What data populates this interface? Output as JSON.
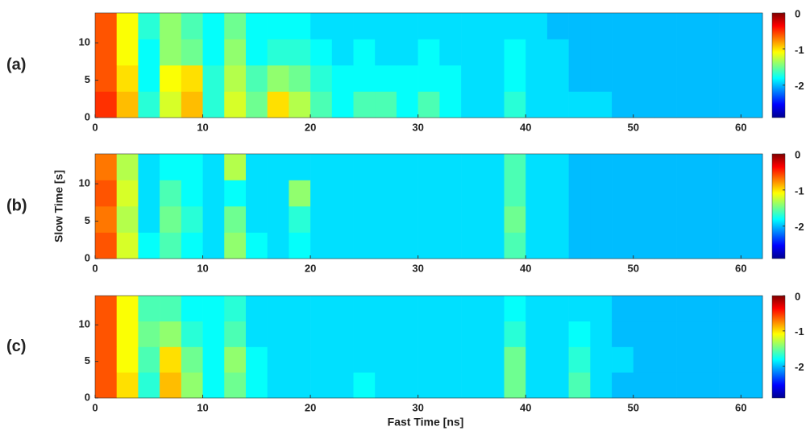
{
  "chart_data": [
    {
      "type": "heatmap",
      "label": "(a)",
      "colormap": "jet",
      "x": [
        1,
        3,
        5,
        7,
        9,
        11,
        13,
        15,
        17,
        19,
        21,
        23,
        25,
        27,
        29,
        31,
        33,
        35,
        37,
        39,
        41,
        43,
        45,
        47,
        49,
        51,
        53,
        55,
        57,
        59,
        61
      ],
      "y": [
        1.75,
        5.25,
        8.75,
        12.25
      ],
      "values": [
        [
          -0.5,
          -0.9,
          -1.7,
          -1.2,
          -0.9,
          -1.7,
          -1.2,
          -1.5,
          -1.0,
          -1.3,
          -1.6,
          -1.8,
          -1.6,
          -1.6,
          -1.8,
          -1.6,
          -1.8,
          -1.9,
          -1.9,
          -1.7,
          -1.9,
          -1.9,
          -1.9,
          -1.9,
          -2.0,
          -2.0,
          -2.0,
          -2.0,
          -2.0,
          -2.0,
          -2.0
        ],
        [
          -0.6,
          -1.0,
          -1.8,
          -1.1,
          -1.0,
          -1.7,
          -1.3,
          -1.6,
          -1.4,
          -1.5,
          -1.7,
          -1.8,
          -1.8,
          -1.8,
          -1.8,
          -1.8,
          -1.8,
          -1.9,
          -1.9,
          -1.8,
          -1.9,
          -1.9,
          -2.0,
          -2.0,
          -2.0,
          -2.0,
          -2.0,
          -2.0,
          -2.0,
          -2.0,
          -2.0
        ],
        [
          -0.6,
          -1.1,
          -1.8,
          -1.4,
          -1.5,
          -1.8,
          -1.4,
          -1.8,
          -1.7,
          -1.7,
          -1.8,
          -1.9,
          -1.8,
          -1.9,
          -1.9,
          -1.8,
          -1.9,
          -1.9,
          -1.9,
          -1.8,
          -1.9,
          -1.9,
          -2.0,
          -2.0,
          -2.0,
          -2.0,
          -2.0,
          -2.0,
          -2.0,
          -2.0,
          -2.0
        ],
        [
          -0.6,
          -1.1,
          -1.7,
          -1.4,
          -1.6,
          -1.8,
          -1.5,
          -1.8,
          -1.8,
          -1.8,
          -1.9,
          -1.9,
          -1.9,
          -1.9,
          -1.9,
          -1.9,
          -1.9,
          -1.9,
          -1.9,
          -1.9,
          -1.9,
          -2.0,
          -2.0,
          -2.0,
          -2.0,
          -2.0,
          -2.0,
          -2.0,
          -2.0,
          -2.0,
          -2.0
        ]
      ],
      "xlim": [
        0,
        62
      ],
      "xticks": [
        0,
        10,
        20,
        30,
        40,
        50,
        60
      ],
      "ylim": [
        0,
        14
      ],
      "yticks": [
        0,
        5,
        10
      ],
      "clim": [
        -2.9,
        0
      ],
      "cticks": [
        0,
        -1,
        -2
      ]
    },
    {
      "type": "heatmap",
      "label": "(b)",
      "colormap": "jet",
      "y_label": "Slow Time [s]",
      "x": [
        1,
        3,
        5,
        7,
        9,
        11,
        13,
        15,
        17,
        19,
        21,
        23,
        25,
        27,
        29,
        31,
        33,
        35,
        37,
        39,
        41,
        43,
        45,
        47,
        49,
        51,
        53,
        55,
        57,
        59,
        61
      ],
      "y": [
        1.75,
        5.25,
        8.75,
        12.25
      ],
      "values": [
        [
          -0.6,
          -1.2,
          -1.8,
          -1.6,
          -1.8,
          -1.9,
          -1.4,
          -1.8,
          -1.9,
          -1.8,
          -1.9,
          -1.9,
          -1.9,
          -1.9,
          -1.9,
          -1.9,
          -1.9,
          -1.9,
          -1.9,
          -1.6,
          -1.9,
          -1.9,
          -2.0,
          -2.0,
          -2.0,
          -2.0,
          -2.0,
          -2.0,
          -2.0,
          -2.0,
          -2.0
        ],
        [
          -0.7,
          -1.3,
          -1.9,
          -1.5,
          -1.7,
          -1.9,
          -1.5,
          -1.9,
          -1.9,
          -1.7,
          -1.9,
          -1.9,
          -1.9,
          -1.9,
          -1.9,
          -1.9,
          -1.9,
          -1.9,
          -1.9,
          -1.5,
          -1.9,
          -1.9,
          -2.0,
          -2.0,
          -2.0,
          -2.0,
          -2.0,
          -2.0,
          -2.0,
          -2.0,
          -2.0
        ],
        [
          -0.6,
          -1.2,
          -1.9,
          -1.6,
          -1.8,
          -1.9,
          -1.8,
          -1.9,
          -1.9,
          -1.4,
          -1.9,
          -1.9,
          -1.9,
          -1.9,
          -1.9,
          -1.9,
          -1.9,
          -1.9,
          -1.9,
          -1.6,
          -1.9,
          -1.9,
          -2.0,
          -2.0,
          -2.0,
          -2.0,
          -2.0,
          -2.0,
          -2.0,
          -2.0,
          -2.0
        ],
        [
          -0.7,
          -1.3,
          -1.9,
          -1.8,
          -1.8,
          -1.9,
          -1.3,
          -1.9,
          -1.9,
          -1.9,
          -1.9,
          -1.9,
          -1.9,
          -1.9,
          -1.9,
          -1.9,
          -1.9,
          -1.9,
          -1.9,
          -1.6,
          -1.9,
          -1.9,
          -2.0,
          -2.0,
          -2.0,
          -2.0,
          -2.0,
          -2.0,
          -2.0,
          -2.0,
          -2.0
        ]
      ],
      "xlim": [
        0,
        62
      ],
      "xticks": [
        0,
        10,
        20,
        30,
        40,
        50,
        60
      ],
      "ylim": [
        0,
        14
      ],
      "yticks": [
        0,
        5,
        10
      ],
      "clim": [
        -2.9,
        0
      ],
      "cticks": [
        0,
        -1,
        -2
      ]
    },
    {
      "type": "heatmap",
      "label": "(c)",
      "colormap": "jet",
      "x_label": "Fast Time [ns]",
      "x": [
        1,
        3,
        5,
        7,
        9,
        11,
        13,
        15,
        17,
        19,
        21,
        23,
        25,
        27,
        29,
        31,
        33,
        35,
        37,
        39,
        41,
        43,
        45,
        47,
        49,
        51,
        53,
        55,
        57,
        59,
        61
      ],
      "y": [
        1.75,
        5.25,
        8.75,
        12.25
      ],
      "values": [
        [
          -0.6,
          -1.0,
          -1.7,
          -0.9,
          -1.4,
          -1.8,
          -1.5,
          -1.8,
          -1.9,
          -1.9,
          -1.9,
          -1.9,
          -1.8,
          -1.9,
          -1.9,
          -1.9,
          -1.9,
          -1.9,
          -1.9,
          -1.5,
          -1.9,
          -1.9,
          -1.6,
          -1.9,
          -2.0,
          -2.0,
          -2.0,
          -2.0,
          -2.0,
          -2.0,
          -2.0
        ],
        [
          -0.6,
          -1.1,
          -1.6,
          -1.0,
          -1.5,
          -1.8,
          -1.4,
          -1.8,
          -1.9,
          -1.9,
          -1.9,
          -1.9,
          -1.9,
          -1.9,
          -1.9,
          -1.9,
          -1.9,
          -1.9,
          -1.9,
          -1.5,
          -1.9,
          -1.9,
          -1.7,
          -1.9,
          -1.9,
          -2.0,
          -2.0,
          -2.0,
          -2.0,
          -2.0,
          -2.0
        ],
        [
          -0.6,
          -1.1,
          -1.5,
          -1.4,
          -1.7,
          -1.8,
          -1.6,
          -1.9,
          -1.9,
          -1.9,
          -1.9,
          -1.9,
          -1.9,
          -1.9,
          -1.9,
          -1.9,
          -1.9,
          -1.9,
          -1.9,
          -1.7,
          -1.9,
          -1.9,
          -1.8,
          -1.9,
          -2.0,
          -2.0,
          -2.0,
          -2.0,
          -2.0,
          -2.0,
          -2.0
        ],
        [
          -0.6,
          -1.1,
          -1.6,
          -1.6,
          -1.8,
          -1.8,
          -1.7,
          -1.9,
          -1.9,
          -1.9,
          -1.9,
          -1.9,
          -1.9,
          -1.9,
          -1.9,
          -1.9,
          -1.9,
          -1.9,
          -1.9,
          -1.8,
          -1.9,
          -1.9,
          -1.9,
          -1.9,
          -2.0,
          -2.0,
          -2.0,
          -2.0,
          -2.0,
          -2.0,
          -2.0
        ]
      ],
      "xlim": [
        0,
        62
      ],
      "xticks": [
        0,
        10,
        20,
        30,
        40,
        50,
        60
      ],
      "ylim": [
        0,
        14
      ],
      "yticks": [
        0,
        5,
        10
      ],
      "clim": [
        -2.9,
        0
      ],
      "cticks": [
        0,
        -1,
        -2
      ]
    }
  ]
}
